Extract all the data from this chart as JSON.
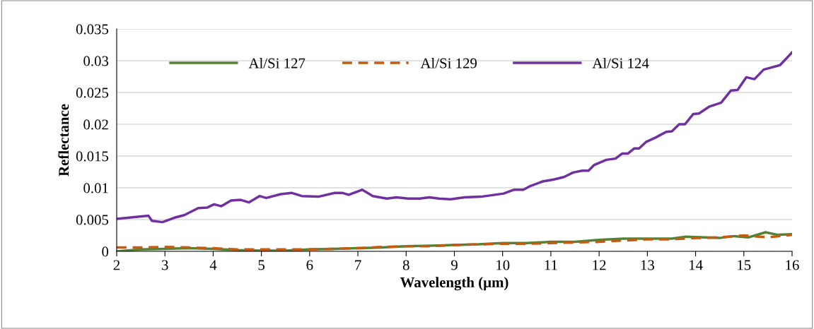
{
  "chart_data": {
    "type": "line",
    "xlabel": "Wavelength (µm)",
    "ylabel": "Reflectance",
    "xlim": [
      2,
      16
    ],
    "xticks": [
      2,
      3,
      4,
      5,
      6,
      7,
      8,
      9,
      10,
      11,
      12,
      13,
      14,
      15,
      16
    ],
    "ylim": [
      0,
      0.035
    ],
    "yticks": [
      0,
      0.005,
      0.01,
      0.015,
      0.02,
      0.025,
      0.03,
      0.035
    ],
    "grid": "y",
    "legend": "top left",
    "marker": "none",
    "series": [
      {
        "name": "Al/Si 127",
        "color": "#548235",
        "line_style": "solid",
        "x": [
          2,
          2.5,
          3,
          3.5,
          4,
          4.5,
          5,
          5.5,
          6,
          6.5,
          7,
          7.5,
          8,
          8.5,
          9,
          9.5,
          10,
          10.5,
          11,
          11.5,
          12,
          12.5,
          13,
          13.5,
          13.8,
          14.2,
          14.5,
          14.8,
          15.1,
          15.45,
          15.7,
          16
        ],
        "values": [
          0.0,
          0.0003,
          0.0004,
          0.0005,
          0.0004,
          0.0002,
          0.0001,
          0.0001,
          0.0003,
          0.0004,
          0.0005,
          0.0006,
          0.0008,
          0.0009,
          0.001,
          0.0011,
          0.0013,
          0.0013,
          0.0015,
          0.0015,
          0.0018,
          0.002,
          0.002,
          0.002,
          0.0023,
          0.0022,
          0.0021,
          0.0024,
          0.0022,
          0.003,
          0.0026,
          0.0027
        ]
      },
      {
        "name": "Al/Si 129",
        "color": "#c55a11",
        "line_style": "dashed",
        "x": [
          2,
          2.5,
          3,
          3.5,
          4,
          4.5,
          5,
          5.5,
          6,
          6.5,
          7,
          7.5,
          8,
          8.5,
          9,
          9.5,
          10,
          10.5,
          11,
          11.5,
          12,
          12.5,
          13,
          13.5,
          14,
          14.5,
          15,
          15.5,
          16
        ],
        "values": [
          0.0006,
          0.0006,
          0.0007,
          0.0006,
          0.0005,
          0.0003,
          0.0003,
          0.0003,
          0.0003,
          0.0004,
          0.0005,
          0.0007,
          0.0008,
          0.0008,
          0.001,
          0.0011,
          0.0012,
          0.0012,
          0.0013,
          0.0014,
          0.0015,
          0.0017,
          0.0019,
          0.0019,
          0.0021,
          0.0022,
          0.0025,
          0.0022,
          0.0026
        ]
      },
      {
        "name": "Al/Si 124",
        "color": "#7030a0",
        "line_style": "solid",
        "x": [
          2,
          2.66,
          2.73,
          2.95,
          3.2,
          3.4,
          3.69,
          3.88,
          4.02,
          4.17,
          4.37,
          4.57,
          4.74,
          4.96,
          5.1,
          5.4,
          5.62,
          5.84,
          6.18,
          6.52,
          6.67,
          6.81,
          7.09,
          7.31,
          7.6,
          7.8,
          8.04,
          8.28,
          8.48,
          8.68,
          8.92,
          9.21,
          9.55,
          9.84,
          10.02,
          10.24,
          10.43,
          10.58,
          10.83,
          11.06,
          11.27,
          11.46,
          11.65,
          11.78,
          11.9,
          12.15,
          12.34,
          12.48,
          12.6,
          12.73,
          12.83,
          12.97,
          13.17,
          13.39,
          13.51,
          13.66,
          13.78,
          13.95,
          14.07,
          14.29,
          14.53,
          14.73,
          14.87,
          15.05,
          15.22,
          15.41,
          15.75,
          16
        ],
        "values": [
          0.0051,
          0.0056,
          0.0048,
          0.0046,
          0.0053,
          0.0057,
          0.0068,
          0.0069,
          0.0074,
          0.0071,
          0.008,
          0.0081,
          0.0077,
          0.0087,
          0.0084,
          0.009,
          0.0092,
          0.0087,
          0.0086,
          0.0092,
          0.0092,
          0.0089,
          0.0097,
          0.0087,
          0.0083,
          0.0085,
          0.0083,
          0.0083,
          0.0085,
          0.0083,
          0.0082,
          0.0085,
          0.0086,
          0.0089,
          0.0091,
          0.0097,
          0.0097,
          0.0103,
          0.011,
          0.0113,
          0.0117,
          0.0124,
          0.0127,
          0.0127,
          0.0136,
          0.0144,
          0.0146,
          0.0154,
          0.0154,
          0.0162,
          0.0162,
          0.0172,
          0.0179,
          0.0188,
          0.0189,
          0.02,
          0.02,
          0.0216,
          0.0217,
          0.0228,
          0.0234,
          0.0253,
          0.0254,
          0.0274,
          0.0271,
          0.0286,
          0.0293,
          0.0313
        ]
      }
    ]
  }
}
